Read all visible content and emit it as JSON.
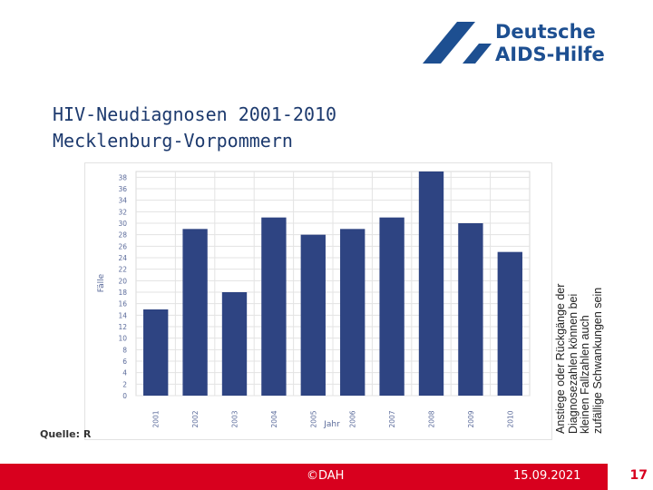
{
  "logo": {
    "line1": "Deutsche",
    "line2": "AIDS-Hilfe",
    "color": "#1d4f91"
  },
  "slide": {
    "title_line1": "HIV-Neudiagnosen 2001-2010",
    "title_line2": "Mecklenburg-Vorpommern",
    "source_label": "Quelle: R",
    "side_note_lines": [
      "Anstiege oder Rückgänge der",
      "Diagnosezahlen können bei",
      "kleinen Fallzahlen auch",
      "zufällige Schwankungen sein"
    ]
  },
  "chart_data": {
    "type": "bar",
    "categories": [
      "2001",
      "2002",
      "2003",
      "2004",
      "2005",
      "2006",
      "2007",
      "2008",
      "2009",
      "2010"
    ],
    "values": [
      15,
      29,
      18,
      31,
      28,
      29,
      31,
      40,
      30,
      25
    ],
    "title": "",
    "xlabel": "Jahr",
    "ylabel": "Fälle",
    "ylim": [
      0,
      39
    ],
    "yticks": [
      0,
      2,
      4,
      6,
      8,
      10,
      12,
      14,
      16,
      18,
      20,
      22,
      24,
      26,
      28,
      30,
      32,
      34,
      36,
      38
    ],
    "grid": true,
    "bar_color": "#2e4482",
    "legend": "none"
  },
  "footer": {
    "copyright": "©DAH",
    "date": "15.09.2021",
    "page_number": "17",
    "color": "#d8001e"
  }
}
